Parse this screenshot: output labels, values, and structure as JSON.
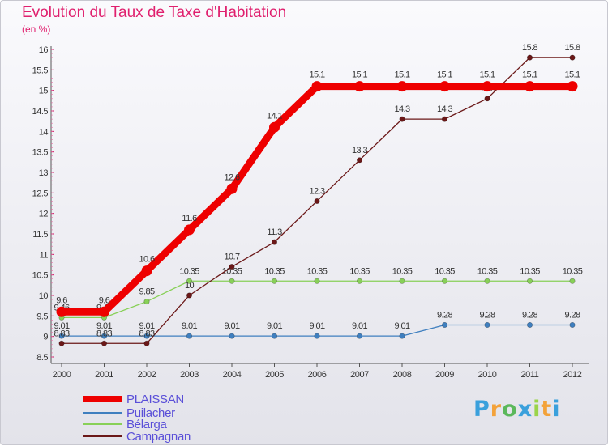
{
  "header": {
    "title": "Evolution du Taux de Taxe d'Habitation",
    "unit": "(en %)"
  },
  "logo": {
    "letters": [
      "P",
      "r",
      "o",
      "x",
      "i",
      "t",
      "i"
    ],
    "colors": [
      "#3aa0dc",
      "#f3a23a",
      "#5bb85b",
      "#3aa0dc",
      "#9ad44a",
      "#f3a23a",
      "#3aa0dc"
    ]
  },
  "chart_data": {
    "type": "line",
    "title": "Evolution du Taux de Taxe d'Habitation",
    "ylabel": "(en %)",
    "xlabel": "",
    "x": [
      "2000",
      "2001",
      "2002",
      "2003",
      "2004",
      "2005",
      "2006",
      "2007",
      "2008",
      "2009",
      "2010",
      "2011",
      "2012"
    ],
    "ylim": [
      8.5,
      16
    ],
    "yticks": [
      "8.5",
      "9",
      "9.5",
      "10",
      "10.5",
      "11",
      "11.5",
      "12",
      "12.5",
      "13",
      "13.5",
      "14",
      "14.5",
      "15",
      "15.5",
      "16"
    ],
    "grid": false,
    "legend_position": "bottom-left",
    "series": [
      {
        "name": "PLAISSAN",
        "color": "#ee0000",
        "values": [
          9.6,
          9.6,
          10.6,
          11.6,
          12.6,
          14.1,
          15.1,
          15.1,
          15.1,
          15.1,
          15.1,
          15.1,
          15.1
        ],
        "labels": [
          "9.6",
          "9.6",
          "10.6",
          "11.6",
          "12.6",
          "14.1",
          "15.1",
          "15.1",
          "15.1",
          "15.1",
          "15.1",
          "15.1",
          "15.1"
        ]
      },
      {
        "name": "Puilacher",
        "color": "#3f7fbf",
        "values": [
          9.01,
          9.01,
          9.01,
          9.01,
          9.01,
          9.01,
          9.01,
          9.01,
          9.01,
          9.28,
          9.28,
          9.28,
          9.28
        ],
        "labels": [
          "9.01",
          "9.01",
          "9.01",
          "9.01",
          "9.01",
          "9.01",
          "9.01",
          "9.01",
          "9.01",
          "9.28",
          "9.28",
          "9.28",
          "9.28"
        ]
      },
      {
        "name": "Bélarga",
        "color": "#88d058",
        "values": [
          9.46,
          9.46,
          9.85,
          10.35,
          10.35,
          10.35,
          10.35,
          10.35,
          10.35,
          10.35,
          10.35,
          10.35,
          10.35
        ],
        "labels": [
          "9.46",
          "9.46",
          "9.85",
          "10.35",
          "10.35",
          "10.35",
          "10.35",
          "10.35",
          "10.35",
          "10.35",
          "10.35",
          "10.35",
          "10.35"
        ]
      },
      {
        "name": "Campagnan",
        "color": "#6b1818",
        "values": [
          8.83,
          8.83,
          8.83,
          10,
          10.7,
          11.3,
          12.3,
          13.3,
          14.3,
          14.3,
          14.8,
          15.8,
          15.8
        ],
        "labels": [
          "8.83",
          "8.83",
          "8.83",
          "10",
          "10.7",
          "11.3",
          "12.3",
          "13.3",
          "14.3",
          "14.3",
          "14.8",
          "15.8",
          "15.8"
        ]
      }
    ]
  }
}
